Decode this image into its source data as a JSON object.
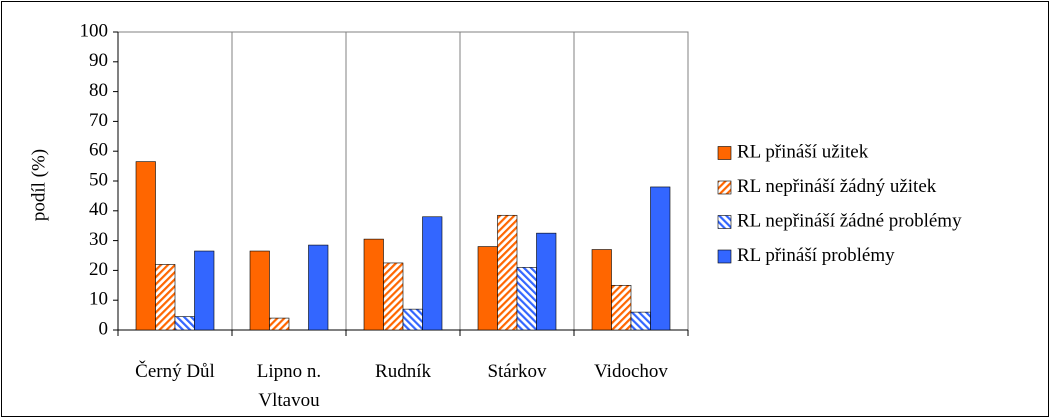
{
  "chart_data": {
    "type": "bar",
    "y_label": "podíl (%)",
    "categories": [
      "Černý Důl",
      "Lipno n. Vltavou",
      "Rudník",
      "Stárkov",
      "Vidochov"
    ],
    "series": [
      {
        "name": "RL přináší užitek",
        "color": "#ff6600",
        "pattern": "solid",
        "values": [
          56.5,
          26.5,
          30.5,
          28,
          27
        ]
      },
      {
        "name": "RL nepřináší žádný užitek",
        "color": "#ff6600",
        "pattern": "hatch-right",
        "values": [
          22,
          4,
          22.5,
          38.5,
          15
        ]
      },
      {
        "name": "RL nepřináší žádné problémy",
        "color": "#3366ff",
        "pattern": "hatch-left",
        "values": [
          4.5,
          null,
          7,
          21,
          6
        ]
      },
      {
        "name": "RL přináší problémy",
        "color": "#3366ff",
        "pattern": "solid",
        "values": [
          26.5,
          28.5,
          38,
          32.5,
          48
        ]
      }
    ],
    "ylim": [
      0,
      100
    ],
    "yticks": [
      0,
      10,
      20,
      30,
      40,
      50,
      60,
      70,
      80,
      90,
      100
    ],
    "grid": true,
    "legend": "right"
  }
}
